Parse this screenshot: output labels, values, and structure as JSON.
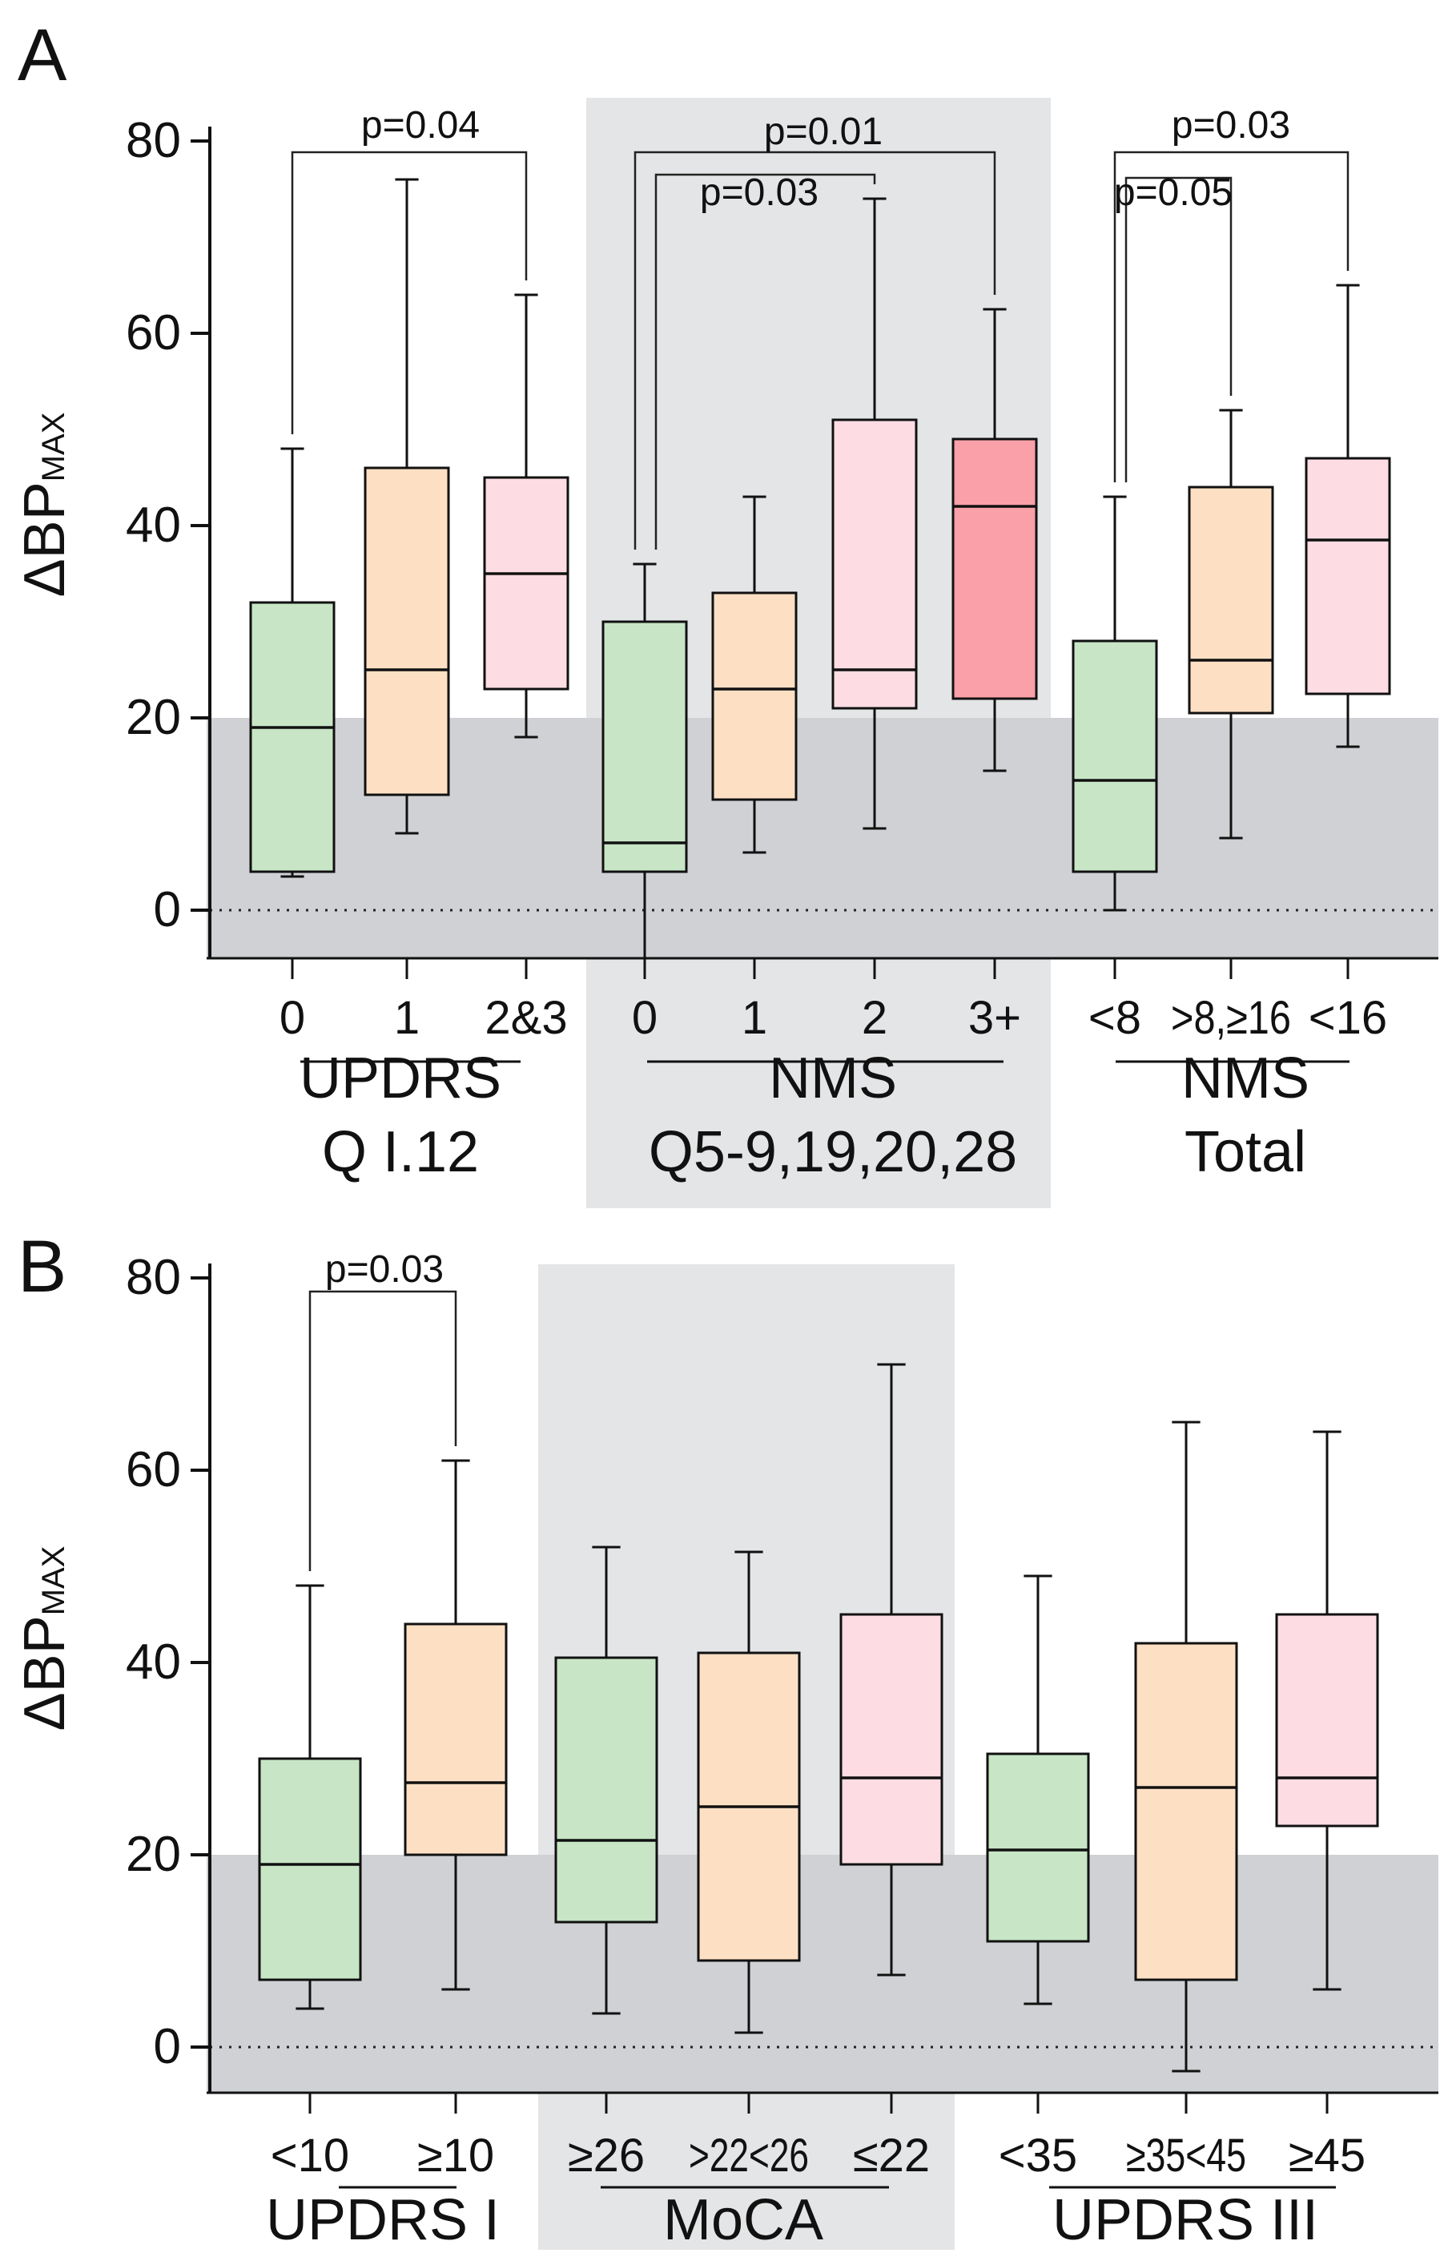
{
  "chart_data": [
    {
      "panel_label": "A",
      "type": "box",
      "ylabel_main": "ΔBP",
      "ylabel_sub": "MAX",
      "ylim": [
        -5,
        80
      ],
      "yticks": [
        0,
        20,
        40,
        60,
        80
      ],
      "threshold": 20,
      "reference_line": 0,
      "groups": [
        {
          "label_lines": [
            "UPDRS",
            "Q I.12"
          ],
          "shaded": false,
          "boxes": [
            {
              "label": "0",
              "color": "#c8e6c6",
              "whisker_low": 3.5,
              "q1": 4,
              "median": 19,
              "q3": 32,
              "whisker_high": 48
            },
            {
              "label": "1",
              "color": "#fde0c4",
              "whisker_low": 8,
              "q1": 12,
              "median": 25,
              "q3": 46,
              "whisker_high": 76
            },
            {
              "label": "2&3",
              "color": "#fddde3",
              "whisker_low": 18,
              "q1": 23,
              "median": 35,
              "q3": 45,
              "whisker_high": 64
            }
          ]
        },
        {
          "label_lines": [
            "NMS",
            "Q5-9,19,20,28"
          ],
          "shaded": true,
          "boxes": [
            {
              "label": "0",
              "color": "#c8e6c6",
              "whisker_low": -5,
              "q1": 4,
              "median": 7,
              "q3": 30,
              "whisker_high": 36
            },
            {
              "label": "1",
              "color": "#fde0c4",
              "whisker_low": 6,
              "q1": 11.5,
              "median": 23,
              "q3": 33,
              "whisker_high": 43
            },
            {
              "label": "2",
              "color": "#fddde3",
              "whisker_low": 8.5,
              "q1": 21,
              "median": 25,
              "q3": 51,
              "whisker_high": 74
            },
            {
              "label": "3+",
              "color": "#f9a0a8",
              "whisker_low": 14.5,
              "q1": 22,
              "median": 42,
              "q3": 49,
              "whisker_high": 62.5
            }
          ]
        },
        {
          "label_lines": [
            "NMS",
            "Total"
          ],
          "shaded": false,
          "boxes": [
            {
              "label": "<8",
              "color": "#c8e6c6",
              "whisker_low": 0,
              "q1": 4,
              "median": 13.5,
              "q3": 28,
              "whisker_high": 43
            },
            {
              "label": ">8,≥16",
              "color": "#fde0c4",
              "whisker_low": 7.5,
              "q1": 20.5,
              "median": 26,
              "q3": 44,
              "whisker_high": 52
            },
            {
              "label": "<16",
              "color": "#fddde3",
              "whisker_low": 17,
              "q1": 22.5,
              "median": 38.5,
              "q3": 47,
              "whisker_high": 65
            }
          ]
        }
      ],
      "comparisons": [
        {
          "from": [
            0,
            0
          ],
          "to": [
            0,
            2
          ],
          "label": "p=0.04"
        },
        {
          "from": [
            1,
            0
          ],
          "to": [
            1,
            3
          ],
          "label": "p=0.01"
        },
        {
          "from": [
            1,
            0
          ],
          "to": [
            1,
            2
          ],
          "label": "p=0.03"
        },
        {
          "from": [
            2,
            0
          ],
          "to": [
            2,
            2
          ],
          "label": "p=0.03"
        },
        {
          "from": [
            2,
            0
          ],
          "to": [
            2,
            1
          ],
          "label": "p=0.05"
        }
      ]
    },
    {
      "panel_label": "B",
      "type": "box",
      "ylabel_main": "ΔBP",
      "ylabel_sub": "MAX",
      "ylim": [
        -5,
        80
      ],
      "yticks": [
        0,
        20,
        40,
        60,
        80
      ],
      "threshold": 20,
      "reference_line": 0,
      "groups": [
        {
          "label_lines": [
            "UPDRS I"
          ],
          "shaded": false,
          "boxes": [
            {
              "label": "<10",
              "color": "#c8e6c6",
              "whisker_low": 4,
              "q1": 7,
              "median": 19,
              "q3": 30,
              "whisker_high": 48
            },
            {
              "label": "≥10",
              "color": "#fde0c4",
              "whisker_low": 6,
              "q1": 20,
              "median": 27.5,
              "q3": 44,
              "whisker_high": 61
            }
          ]
        },
        {
          "label_lines": [
            "MoCA"
          ],
          "shaded": true,
          "boxes": [
            {
              "label": "≥26",
              "color": "#c8e6c6",
              "whisker_low": 3.5,
              "q1": 13,
              "median": 21.5,
              "q3": 40.5,
              "whisker_high": 52
            },
            {
              "label": ">22<26",
              "color": "#fde0c4",
              "whisker_low": 1.5,
              "q1": 9,
              "median": 25,
              "q3": 41,
              "whisker_high": 51.5
            },
            {
              "label": "≤22",
              "color": "#fddde3",
              "whisker_low": 7.5,
              "q1": 19,
              "median": 28,
              "q3": 45,
              "whisker_high": 71
            }
          ]
        },
        {
          "label_lines": [
            "UPDRS III"
          ],
          "shaded": false,
          "boxes": [
            {
              "label": "<35",
              "color": "#c8e6c6",
              "whisker_low": 4.5,
              "q1": 11,
              "median": 20.5,
              "q3": 30.5,
              "whisker_high": 49
            },
            {
              "label": "≥35<45",
              "color": "#fde0c4",
              "whisker_low": -2.5,
              "q1": 7,
              "median": 27,
              "q3": 42,
              "whisker_high": 65
            },
            {
              "label": "≥45",
              "color": "#fddde3",
              "whisker_low": 6,
              "q1": 23,
              "median": 28,
              "q3": 45,
              "whisker_high": 64
            }
          ]
        }
      ],
      "comparisons": [
        {
          "from": [
            0,
            0
          ],
          "to": [
            0,
            1
          ],
          "label": "p=0.03"
        }
      ]
    }
  ],
  "colors": {
    "threshold_band": "#cfd1d4",
    "group_band": "#e4e5e7",
    "axis": "#111111"
  }
}
